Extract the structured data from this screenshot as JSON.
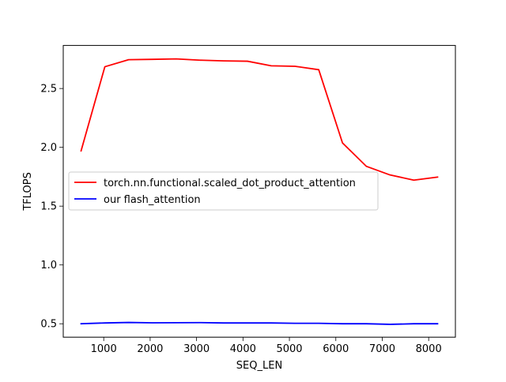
{
  "chart_data": {
    "type": "line",
    "title": "",
    "xlabel": "SEQ_LEN",
    "ylabel": "TFLOPS",
    "xlim": [
      128,
      8576
    ],
    "ylim": [
      0.386,
      2.866
    ],
    "xticks": [
      1000,
      2000,
      3000,
      4000,
      5000,
      6000,
      7000,
      8000
    ],
    "xtick_labels": [
      "1000",
      "2000",
      "3000",
      "4000",
      "5000",
      "6000",
      "7000",
      "8000"
    ],
    "yticks": [
      0.5,
      1.0,
      1.5,
      2.0,
      2.5
    ],
    "ytick_labels": [
      "0.5",
      "1.0",
      "1.5",
      "2.0",
      "2.5"
    ],
    "grid": false,
    "legend_position": "center-left",
    "x": [
      512,
      1024,
      1536,
      2048,
      2560,
      3072,
      3584,
      4096,
      4608,
      5120,
      5632,
      6144,
      6656,
      7168,
      7680,
      8192
    ],
    "series": [
      {
        "name": "torch.nn.functional.scaled_dot_product_attention",
        "color": "#ff0000",
        "values": [
          1.97,
          2.685,
          2.745,
          2.748,
          2.752,
          2.741,
          2.735,
          2.732,
          2.693,
          2.689,
          2.66,
          2.037,
          1.839,
          1.765,
          1.721,
          1.747
        ]
      },
      {
        "name": "our flash_attention",
        "color": "#0000ff",
        "values": [
          0.5,
          0.507,
          0.511,
          0.508,
          0.509,
          0.51,
          0.507,
          0.507,
          0.507,
          0.504,
          0.504,
          0.5,
          0.5,
          0.495,
          0.5,
          0.5
        ]
      }
    ]
  }
}
